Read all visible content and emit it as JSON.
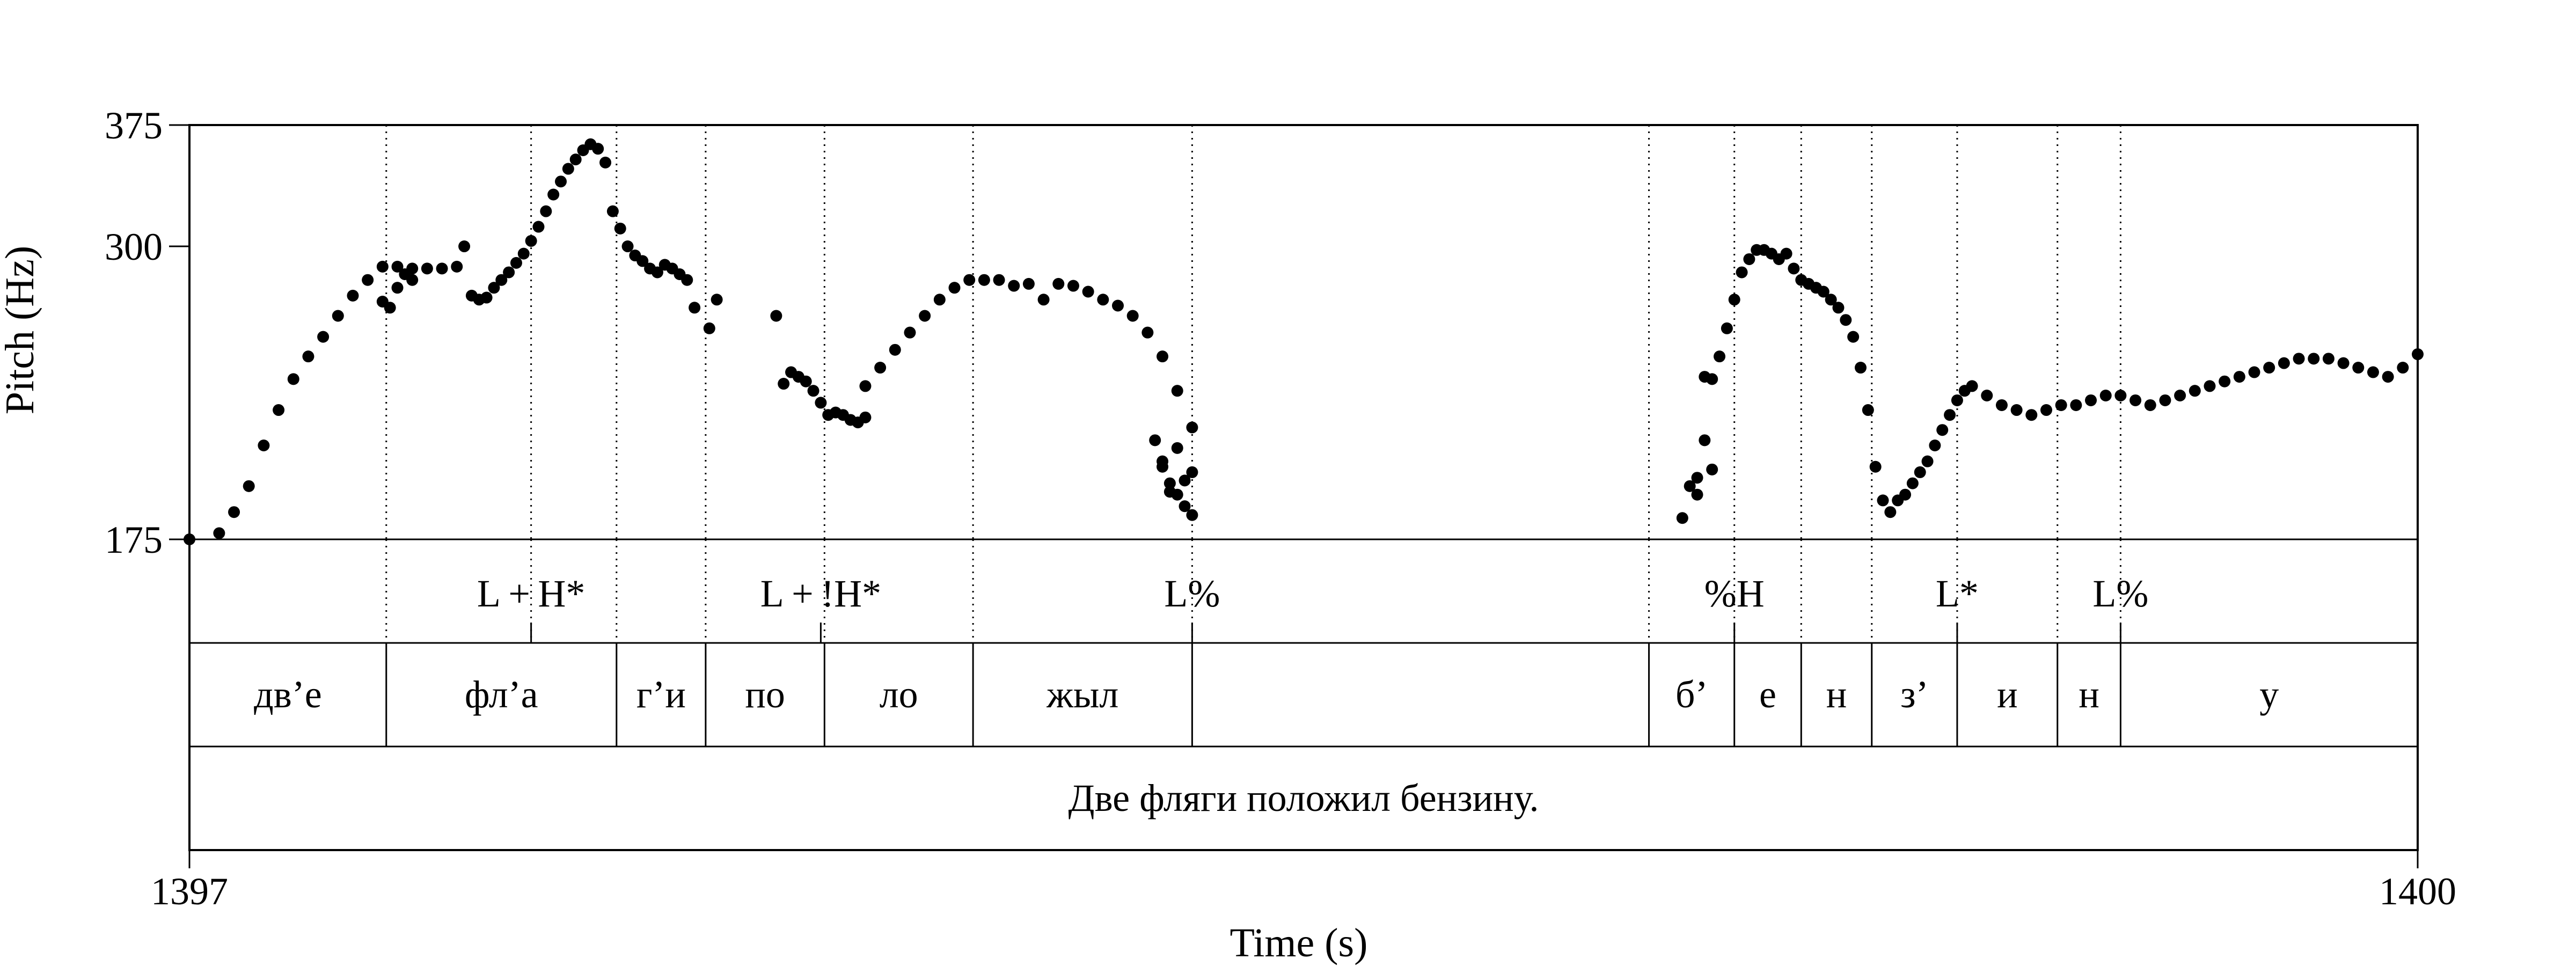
{
  "chart_data": {
    "type": "scatter",
    "xlabel": "Time (s)",
    "ylabel": "Pitch (Hz)",
    "xlim": [
      1397,
      1400
    ],
    "ylim": [
      175,
      375
    ],
    "y_scale": "log",
    "x_ticks": [
      {
        "value": 1397,
        "label": "1397"
      },
      {
        "value": 1400,
        "label": "1400"
      }
    ],
    "y_ticks": [
      {
        "value": 175,
        "label": "175"
      },
      {
        "value": 300,
        "label": "300"
      },
      {
        "value": 375,
        "label": "375"
      }
    ],
    "pitch_contours": [
      {
        "t": [
          1397.0,
          1397.04,
          1397.06,
          1397.08,
          1397.1,
          1397.12,
          1397.14,
          1397.16,
          1397.18,
          1397.2,
          1397.22,
          1397.24,
          1397.26,
          1397.28,
          1397.3,
          1397.32,
          1397.34,
          1397.36
        ],
        "f": [
          175,
          177,
          184,
          193,
          208,
          222,
          235,
          245,
          254,
          264,
          274,
          282,
          289,
          289,
          288,
          288,
          288,
          289
        ]
      },
      {
        "t": [
          1397.26,
          1397.27,
          1397.28,
          1397.29,
          1397.3
        ],
        "f": [
          271,
          268,
          278,
          285,
          282
        ]
      },
      {
        "t": [
          1397.37,
          1397.38,
          1397.39,
          1397.4,
          1397.41,
          1397.42,
          1397.43,
          1397.44,
          1397.45,
          1397.46,
          1397.47,
          1397.48,
          1397.49,
          1397.5,
          1397.51,
          1397.52,
          1397.53,
          1397.54,
          1397.55,
          1397.56
        ],
        "f": [
          300,
          274,
          272,
          273,
          278,
          282,
          286,
          291,
          296,
          303,
          311,
          320,
          330,
          338,
          346,
          352,
          358,
          362,
          359,
          350
        ]
      },
      {
        "t": [
          1397.57,
          1397.58,
          1397.59,
          1397.6,
          1397.61,
          1397.62,
          1397.63,
          1397.64,
          1397.65,
          1397.66,
          1397.67,
          1397.68,
          1397.7,
          1397.71
        ],
        "f": [
          320,
          310,
          300,
          295,
          292,
          288,
          286,
          290,
          288,
          285,
          282,
          268,
          258,
          272
        ]
      },
      {
        "t": [
          1397.79,
          1397.8,
          1397.81,
          1397.82,
          1397.83,
          1397.84,
          1397.85,
          1397.86,
          1397.87,
          1397.88,
          1397.89,
          1397.9,
          1397.91
        ],
        "f": [
          264,
          233,
          238,
          236,
          234,
          230,
          225,
          220,
          221,
          220,
          218,
          217,
          219
        ]
      },
      {
        "t": [
          1397.91,
          1397.93,
          1397.95,
          1397.97,
          1397.99,
          1398.01,
          1398.03,
          1398.05,
          1398.07,
          1398.09,
          1398.11,
          1398.13,
          1398.15,
          1398.17,
          1398.19,
          1398.21,
          1398.23,
          1398.25,
          1398.27,
          1398.29,
          1398.31,
          1398.33,
          1398.35
        ],
        "f": [
          232,
          240,
          248,
          256,
          264,
          272,
          278,
          282,
          282,
          282,
          279,
          280,
          272,
          280,
          279,
          276,
          272,
          269,
          264,
          256,
          245,
          230,
          215
        ]
      },
      {
        "t": [
          1398.3,
          1398.31,
          1398.32,
          1398.33,
          1398.34,
          1398.35
        ],
        "f": [
          210,
          200,
          194,
          190,
          186,
          183
        ]
      },
      {
        "t": [
          1398.31,
          1398.32,
          1398.33,
          1398.34,
          1398.35
        ],
        "f": [
          202,
          191,
          207,
          195,
          198
        ]
      },
      {
        "t": [
          1399.01,
          1399.02,
          1399.03,
          1399.04,
          1399.05,
          1399.06,
          1399.07,
          1399.08,
          1399.09,
          1399.1,
          1399.11,
          1399.12,
          1399.13,
          1399.14,
          1399.15,
          1399.16,
          1399.17,
          1399.18,
          1399.19,
          1399.2,
          1399.21,
          1399.22,
          1399.23,
          1399.24,
          1399.25,
          1399.26
        ],
        "f": [
          182,
          193,
          196,
          210,
          235,
          245,
          258,
          272,
          286,
          293,
          298,
          298,
          296,
          293,
          296,
          288,
          282,
          280,
          278,
          276,
          272,
          268,
          262,
          254,
          240,
          222
        ]
      },
      {
        "t": [
          1399.03,
          1399.04,
          1399.05
        ],
        "f": [
          190,
          236,
          199
        ]
      },
      {
        "t": [
          1399.27,
          1399.28,
          1399.29,
          1399.3,
          1399.31,
          1399.32,
          1399.33,
          1399.34,
          1399.35,
          1399.36,
          1399.37,
          1399.38,
          1399.39,
          1399.4,
          1399.42,
          1399.44,
          1399.46,
          1399.48,
          1399.5,
          1399.52,
          1399.54,
          1399.56,
          1399.58,
          1399.6,
          1399.62,
          1399.64,
          1399.66,
          1399.68,
          1399.7,
          1399.72,
          1399.74,
          1399.76,
          1399.78,
          1399.8,
          1399.82,
          1399.84,
          1399.86,
          1399.88,
          1399.9,
          1399.92,
          1399.94,
          1399.96,
          1399.98,
          1400.0
        ],
        "f": [
          200,
          188,
          184,
          188,
          190,
          194,
          198,
          202,
          208,
          214,
          220,
          226,
          230,
          232,
          228,
          224,
          222,
          220,
          222,
          224,
          224,
          226,
          228,
          228,
          226,
          224,
          226,
          228,
          230,
          232,
          234,
          236,
          238,
          240,
          242,
          244,
          244,
          244,
          242,
          240,
          238,
          236,
          240,
          246
        ]
      }
    ],
    "tiers": {
      "tones": [
        {
          "label": "L + H*",
          "t": 1397.46
        },
        {
          "label": "L + !H*",
          "t": 1397.85
        },
        {
          "label": "L%",
          "t": 1398.35
        },
        {
          "label": "%H",
          "t": 1399.08
        },
        {
          "label": "L*",
          "t": 1399.38
        },
        {
          "label": "L%",
          "t": 1399.6
        }
      ],
      "tone_boundaries": [
        1397.265,
        1397.46,
        1397.575,
        1397.695,
        1397.855,
        1398.055,
        1398.35,
        1398.965,
        1399.08,
        1399.17,
        1399.265,
        1399.38,
        1399.515,
        1399.6
      ],
      "segments": [
        {
          "label": "дв’е",
          "start": 1397.0,
          "end": 1397.265
        },
        {
          "label": "фл’а",
          "start": 1397.265,
          "end": 1397.575
        },
        {
          "label": "г’и",
          "start": 1397.575,
          "end": 1397.695
        },
        {
          "label": "по",
          "start": 1397.695,
          "end": 1397.855
        },
        {
          "label": "ло",
          "start": 1397.855,
          "end": 1398.055
        },
        {
          "label": "жыл",
          "start": 1398.055,
          "end": 1398.35
        },
        {
          "label": "",
          "start": 1398.35,
          "end": 1398.965
        },
        {
          "label": "б’",
          "start": 1398.965,
          "end": 1399.08
        },
        {
          "label": "е",
          "start": 1399.08,
          "end": 1399.17
        },
        {
          "label": "н",
          "start": 1399.17,
          "end": 1399.265
        },
        {
          "label": "з’",
          "start": 1399.265,
          "end": 1399.38
        },
        {
          "label": "и",
          "start": 1399.38,
          "end": 1399.515
        },
        {
          "label": "н",
          "start": 1399.515,
          "end": 1399.6
        },
        {
          "label": "у",
          "start": 1399.6,
          "end": 1400.0
        }
      ],
      "sentence": {
        "label": "Две фляги положил бензину.",
        "start": 1397.0,
        "end": 1400.0
      }
    }
  }
}
